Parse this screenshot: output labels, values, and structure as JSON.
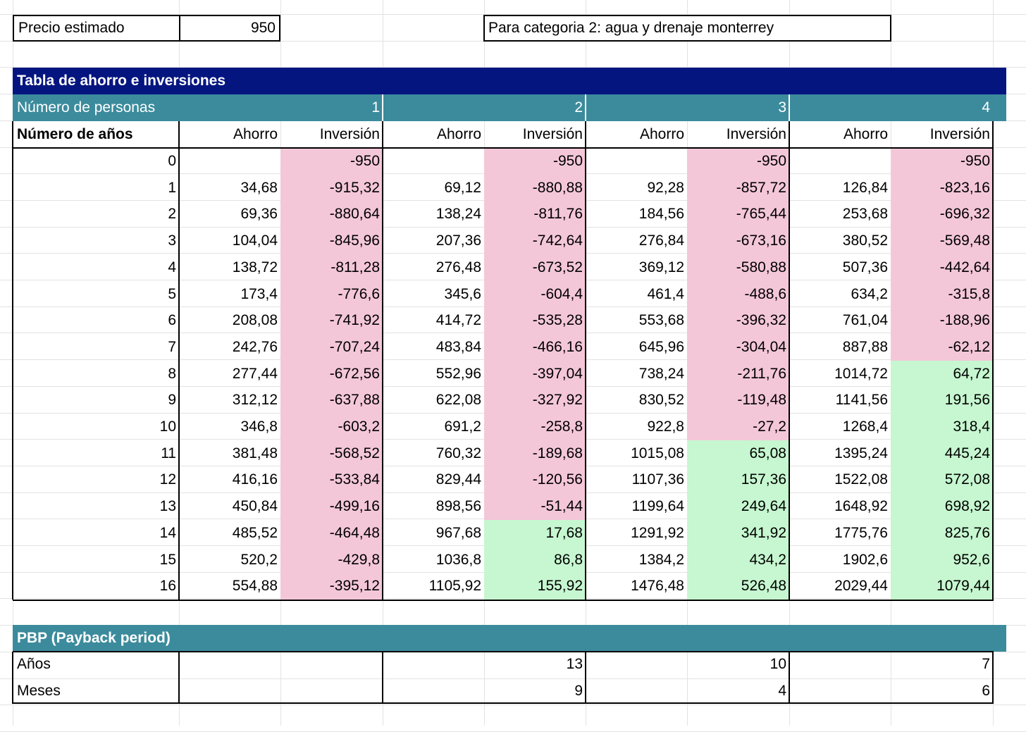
{
  "top": {
    "price_label": "Precio estimado",
    "price_value": "950",
    "category_note": "Para categoria 2: agua y drenaje monterrey"
  },
  "table": {
    "title": "Tabla de ahorro e inversiones",
    "persons_label": "Número de personas",
    "persons": [
      "1",
      "2",
      "3",
      "4"
    ],
    "years_label": "Número de años",
    "col_ahorro": "Ahorro",
    "col_inversion": "Inversión",
    "rows": [
      {
        "year": "0",
        "vals": [
          [
            "",
            "-950",
            "neg"
          ],
          [
            "",
            "-950",
            "neg"
          ],
          [
            "",
            "-950",
            "neg"
          ],
          [
            "",
            "-950",
            "neg"
          ]
        ]
      },
      {
        "year": "1",
        "vals": [
          [
            "34,68",
            "-915,32",
            "neg"
          ],
          [
            "69,12",
            "-880,88",
            "neg"
          ],
          [
            "92,28",
            "-857,72",
            "neg"
          ],
          [
            "126,84",
            "-823,16",
            "neg"
          ]
        ]
      },
      {
        "year": "2",
        "vals": [
          [
            "69,36",
            "-880,64",
            "neg"
          ],
          [
            "138,24",
            "-811,76",
            "neg"
          ],
          [
            "184,56",
            "-765,44",
            "neg"
          ],
          [
            "253,68",
            "-696,32",
            "neg"
          ]
        ]
      },
      {
        "year": "3",
        "vals": [
          [
            "104,04",
            "-845,96",
            "neg"
          ],
          [
            "207,36",
            "-742,64",
            "neg"
          ],
          [
            "276,84",
            "-673,16",
            "neg"
          ],
          [
            "380,52",
            "-569,48",
            "neg"
          ]
        ]
      },
      {
        "year": "4",
        "vals": [
          [
            "138,72",
            "-811,28",
            "neg"
          ],
          [
            "276,48",
            "-673,52",
            "neg"
          ],
          [
            "369,12",
            "-580,88",
            "neg"
          ],
          [
            "507,36",
            "-442,64",
            "neg"
          ]
        ]
      },
      {
        "year": "5",
        "vals": [
          [
            "173,4",
            "-776,6",
            "neg"
          ],
          [
            "345,6",
            "-604,4",
            "neg"
          ],
          [
            "461,4",
            "-488,6",
            "neg"
          ],
          [
            "634,2",
            "-315,8",
            "neg"
          ]
        ]
      },
      {
        "year": "6",
        "vals": [
          [
            "208,08",
            "-741,92",
            "neg"
          ],
          [
            "414,72",
            "-535,28",
            "neg"
          ],
          [
            "553,68",
            "-396,32",
            "neg"
          ],
          [
            "761,04",
            "-188,96",
            "neg"
          ]
        ]
      },
      {
        "year": "7",
        "vals": [
          [
            "242,76",
            "-707,24",
            "neg"
          ],
          [
            "483,84",
            "-466,16",
            "neg"
          ],
          [
            "645,96",
            "-304,04",
            "neg"
          ],
          [
            "887,88",
            "-62,12",
            "neg"
          ]
        ]
      },
      {
        "year": "8",
        "vals": [
          [
            "277,44",
            "-672,56",
            "neg"
          ],
          [
            "552,96",
            "-397,04",
            "neg"
          ],
          [
            "738,24",
            "-211,76",
            "neg"
          ],
          [
            "1014,72",
            "64,72",
            "pos"
          ]
        ]
      },
      {
        "year": "9",
        "vals": [
          [
            "312,12",
            "-637,88",
            "neg"
          ],
          [
            "622,08",
            "-327,92",
            "neg"
          ],
          [
            "830,52",
            "-119,48",
            "neg"
          ],
          [
            "1141,56",
            "191,56",
            "pos"
          ]
        ]
      },
      {
        "year": "10",
        "vals": [
          [
            "346,8",
            "-603,2",
            "neg"
          ],
          [
            "691,2",
            "-258,8",
            "neg"
          ],
          [
            "922,8",
            "-27,2",
            "neg"
          ],
          [
            "1268,4",
            "318,4",
            "pos"
          ]
        ]
      },
      {
        "year": "11",
        "vals": [
          [
            "381,48",
            "-568,52",
            "neg"
          ],
          [
            "760,32",
            "-189,68",
            "neg"
          ],
          [
            "1015,08",
            "65,08",
            "pos"
          ],
          [
            "1395,24",
            "445,24",
            "pos"
          ]
        ]
      },
      {
        "year": "12",
        "vals": [
          [
            "416,16",
            "-533,84",
            "neg"
          ],
          [
            "829,44",
            "-120,56",
            "neg"
          ],
          [
            "1107,36",
            "157,36",
            "pos"
          ],
          [
            "1522,08",
            "572,08",
            "pos"
          ]
        ]
      },
      {
        "year": "13",
        "vals": [
          [
            "450,84",
            "-499,16",
            "neg"
          ],
          [
            "898,56",
            "-51,44",
            "neg"
          ],
          [
            "1199,64",
            "249,64",
            "pos"
          ],
          [
            "1648,92",
            "698,92",
            "pos"
          ]
        ]
      },
      {
        "year": "14",
        "vals": [
          [
            "485,52",
            "-464,48",
            "neg"
          ],
          [
            "967,68",
            "17,68",
            "pos"
          ],
          [
            "1291,92",
            "341,92",
            "pos"
          ],
          [
            "1775,76",
            "825,76",
            "pos"
          ]
        ]
      },
      {
        "year": "15",
        "vals": [
          [
            "520,2",
            "-429,8",
            "neg"
          ],
          [
            "1036,8",
            "86,8",
            "pos"
          ],
          [
            "1384,2",
            "434,2",
            "pos"
          ],
          [
            "1902,6",
            "952,6",
            "pos"
          ]
        ]
      },
      {
        "year": "16",
        "vals": [
          [
            "554,88",
            "-395,12",
            "neg"
          ],
          [
            "1105,92",
            "155,92",
            "pos"
          ],
          [
            "1476,48",
            "526,48",
            "pos"
          ],
          [
            "2029,44",
            "1079,44",
            "pos"
          ]
        ]
      }
    ]
  },
  "pbp": {
    "title": "PBP (Payback period)",
    "years_label": "Años",
    "months_label": "Meses",
    "years": [
      "",
      "13",
      "10",
      "7"
    ],
    "months": [
      "",
      "9",
      "4",
      "6"
    ]
  },
  "colors": {
    "navy_band": "#05157f",
    "teal_band": "#3b8b9c",
    "negative_fill": "#f4c7d8",
    "positive_fill": "#c6f7d0"
  }
}
